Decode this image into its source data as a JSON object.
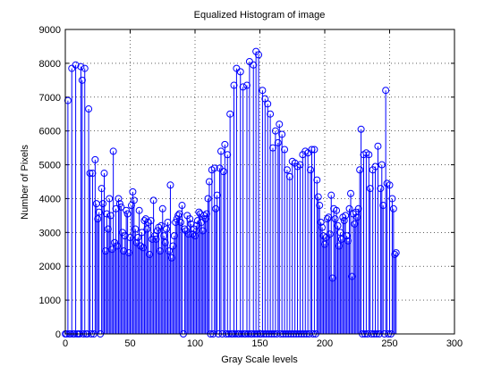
{
  "chart_data": {
    "type": "stem",
    "title": "Equalized Histogram of image",
    "xlabel": "Gray Scale levels",
    "ylabel": "Number of Pixels",
    "color": "#0000ff",
    "grid": true,
    "xlim": [
      0,
      300
    ],
    "xticks": [
      0,
      50,
      100,
      150,
      200,
      250,
      300
    ],
    "ylim": [
      0,
      9000
    ],
    "yticks": [
      0,
      1000,
      2000,
      3000,
      4000,
      5000,
      6000,
      7000,
      8000,
      9000
    ],
    "x": [
      0,
      1,
      2,
      3,
      4,
      5,
      6,
      7,
      8,
      9,
      10,
      11,
      12,
      13,
      14,
      15,
      16,
      17,
      18,
      19,
      20,
      21,
      22,
      23,
      24,
      25,
      26,
      27,
      28,
      29,
      30,
      31,
      32,
      33,
      34,
      35,
      36,
      37,
      38,
      39,
      40,
      41,
      42,
      43,
      44,
      45,
      46,
      47,
      48,
      49,
      50,
      51,
      52,
      53,
      54,
      55,
      56,
      57,
      58,
      59,
      60,
      61,
      62,
      63,
      64,
      65,
      66,
      67,
      68,
      69,
      70,
      71,
      72,
      73,
      74,
      75,
      76,
      77,
      78,
      79,
      80,
      81,
      82,
      83,
      84,
      85,
      86,
      87,
      88,
      89,
      90,
      91,
      92,
      93,
      94,
      95,
      96,
      97,
      98,
      99,
      100,
      101,
      102,
      103,
      104,
      105,
      106,
      107,
      108,
      109,
      110,
      111,
      112,
      113,
      114,
      115,
      116,
      117,
      118,
      119,
      120,
      121,
      122,
      123,
      124,
      125,
      126,
      127,
      128,
      129,
      130,
      131,
      132,
      133,
      134,
      135,
      136,
      137,
      138,
      139,
      140,
      141,
      142,
      143,
      144,
      145,
      146,
      147,
      148,
      149,
      150,
      151,
      152,
      153,
      154,
      155,
      156,
      157,
      158,
      159,
      160,
      161,
      162,
      163,
      164,
      165,
      166,
      167,
      168,
      169,
      170,
      171,
      172,
      173,
      174,
      175,
      176,
      177,
      178,
      179,
      180,
      181,
      182,
      183,
      184,
      185,
      186,
      187,
      188,
      189,
      190,
      191,
      192,
      193,
      194,
      195,
      196,
      197,
      198,
      199,
      200,
      201,
      202,
      203,
      204,
      205,
      206,
      207,
      208,
      209,
      210,
      211,
      212,
      213,
      214,
      215,
      216,
      217,
      218,
      219,
      220,
      221,
      222,
      223,
      224,
      225,
      226,
      227,
      228,
      229,
      230,
      231,
      232,
      233,
      234,
      235,
      236,
      237,
      238,
      239,
      240,
      241,
      242,
      243,
      244,
      245,
      246,
      247,
      248,
      249,
      250,
      251,
      252,
      253,
      254,
      255
    ],
    "values": [
      0,
      0,
      6900,
      0,
      0,
      7850,
      0,
      0,
      7950,
      0,
      0,
      0,
      7900,
      7500,
      0,
      7850,
      0,
      0,
      6650,
      4750,
      0,
      4750,
      0,
      5150,
      3850,
      3400,
      3600,
      0,
      4300,
      3850,
      4750,
      2450,
      3550,
      3100,
      4000,
      3500,
      2500,
      5400,
      2700,
      3700,
      2600,
      4000,
      3850,
      3750,
      3000,
      2450,
      2900,
      3650,
      3550,
      2400,
      2850,
      3800,
      4200,
      3950,
      3100,
      2700,
      2850,
      3650,
      2600,
      3000,
      2550,
      3350,
      3400,
      3100,
      3300,
      2350,
      3350,
      2800,
      3950,
      2900,
      2800,
      3050,
      3150,
      2450,
      3200,
      3700,
      2900,
      2700,
      3100,
      3300,
      2450,
      4400,
      2250,
      2600,
      2900,
      3300,
      3400,
      3500,
      3550,
      3300,
      3800,
      0,
      3100,
      3050,
      3500,
      2950,
      3400,
      3250,
      2950,
      3100,
      2900,
      3200,
      3350,
      3600,
      3550,
      3300,
      3050,
      3500,
      3400,
      3550,
      4000,
      4500,
      0,
      4850,
      0,
      4900,
      3700,
      4100,
      0,
      4900,
      5400,
      0,
      4800,
      5600,
      0,
      5300,
      0,
      6500,
      0,
      0,
      7350,
      0,
      7850,
      0,
      0,
      7750,
      0,
      7300,
      0,
      0,
      7350,
      0,
      8050,
      0,
      0,
      7950,
      0,
      8350,
      0,
      8250,
      0,
      0,
      7200,
      0,
      6950,
      0,
      6800,
      0,
      6500,
      0,
      5500,
      0,
      6000,
      0,
      5650,
      6200,
      0,
      5900,
      0,
      5450,
      0,
      4850,
      0,
      4650,
      0,
      5100,
      0,
      5050,
      0,
      4950,
      0,
      5000,
      0,
      5300,
      0,
      5400,
      0,
      5350,
      0,
      4850,
      5450,
      0,
      5450,
      0,
      4550,
      4050,
      3800,
      3300,
      3150,
      2900,
      2650,
      2850,
      3400,
      3450,
      2950,
      4100,
      1650,
      3700,
      3400,
      3650,
      3200,
      2600,
      3000,
      2800,
      3450,
      3350,
      3500,
      2900,
      2750,
      3700,
      4150,
      1700,
      3550,
      3250,
      3600,
      3450,
      3700,
      4850,
      6050,
      0,
      5300,
      0,
      5350,
      0,
      5300,
      4300,
      0,
      4850,
      0,
      4950,
      0,
      5550,
      0,
      4300,
      5000,
      3800,
      0,
      7200,
      4450,
      0,
      4400,
      0,
      4000,
      3700,
      2350,
      2400
    ]
  }
}
